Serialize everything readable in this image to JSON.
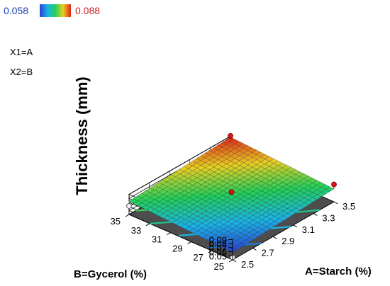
{
  "chart_data": {
    "type": "surface",
    "colorbar": {
      "min_label": "0.058",
      "max_label": "0.088",
      "min_color": "#1b3fa8",
      "max_color": "#d62020"
    },
    "factor_labels": [
      "X1=A",
      "X2=B"
    ],
    "zlabel": "Thickness (mm)",
    "xlabel": "A=Starch (%)",
    "ylabel": "B=Gycerol (%)",
    "x_ticks": [
      "2.5",
      "2.7",
      "2.9",
      "3.1",
      "3.3",
      "3.5"
    ],
    "y_ticks": [
      "25",
      "27",
      "29",
      "31",
      "33",
      "35"
    ],
    "z_ticks": [
      "0.05",
      "0.06",
      "0.07",
      "0.08",
      "0.09"
    ],
    "xlim": [
      2.5,
      3.5
    ],
    "ylim": [
      25,
      35
    ],
    "zlim": [
      0.04,
      0.09
    ],
    "surface_corners": {
      "a_low_b_low": 0.058,
      "a_high_b_low": 0.072,
      "a_low_b_high": 0.073,
      "a_high_b_high": 0.088
    },
    "design_points": [
      {
        "a": 2.5,
        "b": 25,
        "thickness": 0.046,
        "side": "below"
      },
      {
        "a": 3.5,
        "b": 25,
        "thickness": 0.083,
        "side": "above"
      },
      {
        "a": 2.5,
        "b": 35,
        "thickness": 0.061,
        "side": "below"
      },
      {
        "a": 3.5,
        "b": 35,
        "thickness": 0.091,
        "side": "above"
      },
      {
        "a": 3.0,
        "b": 30,
        "thickness": 0.08,
        "side": "above"
      }
    ],
    "floor_contours": [
      0.062,
      0.066,
      0.07,
      0.074,
      0.078,
      0.082,
      0.086
    ],
    "grid": true
  }
}
